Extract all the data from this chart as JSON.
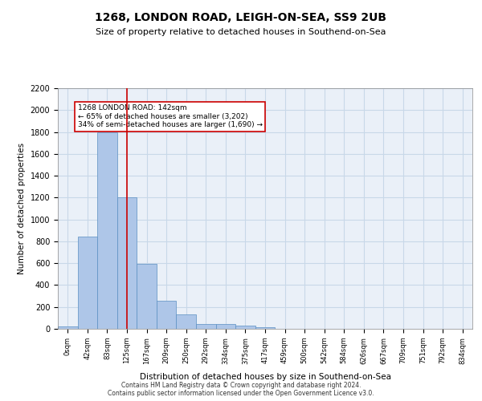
{
  "title": "1268, LONDON ROAD, LEIGH-ON-SEA, SS9 2UB",
  "subtitle": "Size of property relative to detached houses in Southend-on-Sea",
  "xlabel": "Distribution of detached houses by size in Southend-on-Sea",
  "ylabel": "Number of detached properties",
  "bin_labels": [
    "0sqm",
    "42sqm",
    "83sqm",
    "125sqm",
    "167sqm",
    "209sqm",
    "250sqm",
    "292sqm",
    "334sqm",
    "375sqm",
    "417sqm",
    "459sqm",
    "500sqm",
    "542sqm",
    "584sqm",
    "626sqm",
    "667sqm",
    "709sqm",
    "751sqm",
    "792sqm",
    "834sqm"
  ],
  "bar_heights": [
    25,
    845,
    1800,
    1200,
    595,
    255,
    133,
    43,
    43,
    30,
    18,
    0,
    0,
    0,
    0,
    0,
    0,
    0,
    0,
    0,
    0
  ],
  "bar_color": "#aec6e8",
  "bar_edge_color": "#5a8fc2",
  "grid_color": "#c8d8e8",
  "background_color": "#eaf0f8",
  "property_line_x": 3,
  "annotation_text": "1268 LONDON ROAD: 142sqm\n← 65% of detached houses are smaller (3,202)\n34% of semi-detached houses are larger (1,690) →",
  "annotation_box_color": "#ffffff",
  "annotation_box_edge_color": "#cc0000",
  "ylim": [
    0,
    2200
  ],
  "yticks": [
    0,
    200,
    400,
    600,
    800,
    1000,
    1200,
    1400,
    1600,
    1800,
    2000,
    2200
  ],
  "footer_line1": "Contains HM Land Registry data © Crown copyright and database right 2024.",
  "footer_line2": "Contains public sector information licensed under the Open Government Licence v3.0."
}
